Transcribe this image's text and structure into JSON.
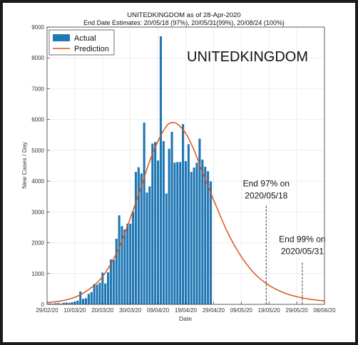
{
  "chart_data": {
    "type": "bar",
    "title": "UNITEDKINGDOM as of 28-Apr-2020",
    "subtitle": "End Date Estimates: 20/05/18 (97%), 20/05/31(99%), 20/08/24 (100%)",
    "big_label": "UNITEDKINGDOM",
    "xlabel": "Date",
    "ylabel": "New Cases / Day",
    "ylim": [
      0,
      9000
    ],
    "xlim_days": [
      0,
      100
    ],
    "yticks": [
      0,
      1000,
      2000,
      3000,
      4000,
      5000,
      6000,
      7000,
      8000,
      9000
    ],
    "xticks": [
      {
        "day": 0,
        "label": "29/02/20"
      },
      {
        "day": 10,
        "label": "10/03/20"
      },
      {
        "day": 20,
        "label": "20/03/20"
      },
      {
        "day": 30,
        "label": "30/03/20"
      },
      {
        "day": 40,
        "label": "09/04/20"
      },
      {
        "day": 50,
        "label": "19/04/20"
      },
      {
        "day": 60,
        "label": "29/04/20"
      },
      {
        "day": 70,
        "label": "09/05/20"
      },
      {
        "day": 80,
        "label": "19/05/20"
      },
      {
        "day": 90,
        "label": "29/05/20"
      },
      {
        "day": 100,
        "label": "08/06/20"
      }
    ],
    "grid": true,
    "legend_position": "top-left",
    "series": [
      {
        "name": "Actual",
        "kind": "bar",
        "color": "#1f77b4",
        "start_date": "2020-03-01",
        "values": [
          30,
          20,
          35,
          40,
          25,
          50,
          60,
          50,
          70,
          90,
          120,
          420,
          180,
          200,
          340,
          400,
          660,
          640,
          700,
          1030,
          680,
          1040,
          1460,
          1440,
          2130,
          2890,
          2540,
          2430,
          2620,
          2620,
          3010,
          4300,
          4450,
          4250,
          5900,
          3630,
          3830,
          5220,
          5270,
          4670,
          8700,
          5300,
          3600,
          5050,
          5600,
          4600,
          4620,
          4620,
          5850,
          4650,
          5200,
          4300,
          4440,
          4600,
          5380,
          4700,
          4470,
          4320,
          3990
        ]
      },
      {
        "name": "Prediction",
        "kind": "line",
        "color": "#d95319",
        "points": [
          {
            "day": 0,
            "value": 60
          },
          {
            "day": 5,
            "value": 110
          },
          {
            "day": 10,
            "value": 230
          },
          {
            "day": 15,
            "value": 480
          },
          {
            "day": 20,
            "value": 900
          },
          {
            "day": 25,
            "value": 1650
          },
          {
            "day": 28,
            "value": 2300
          },
          {
            "day": 31,
            "value": 3050
          },
          {
            "day": 34,
            "value": 3850
          },
          {
            "day": 37,
            "value": 4650
          },
          {
            "day": 40,
            "value": 5300
          },
          {
            "day": 43,
            "value": 5780
          },
          {
            "day": 45,
            "value": 5900
          },
          {
            "day": 47,
            "value": 5850
          },
          {
            "day": 50,
            "value": 5550
          },
          {
            "day": 53,
            "value": 5000
          },
          {
            "day": 56,
            "value": 4300
          },
          {
            "day": 60,
            "value": 3400
          },
          {
            "day": 65,
            "value": 2350
          },
          {
            "day": 70,
            "value": 1550
          },
          {
            "day": 75,
            "value": 980
          },
          {
            "day": 80,
            "value": 620
          },
          {
            "day": 85,
            "value": 390
          },
          {
            "day": 90,
            "value": 250
          },
          {
            "day": 95,
            "value": 165
          },
          {
            "day": 100,
            "value": 110
          }
        ]
      }
    ],
    "annotations": [
      {
        "day": 79,
        "line_top_value": 3200,
        "lines": [
          "End 97% on",
          "2020/05/18"
        ],
        "text_value": 3500
      },
      {
        "day": 92,
        "line_top_value": 1350,
        "lines": [
          "End 99% on",
          "2020/05/31"
        ],
        "text_value": 1700
      }
    ]
  }
}
